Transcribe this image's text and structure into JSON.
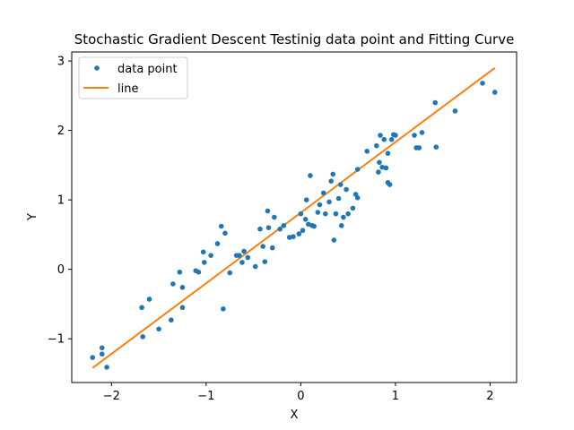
{
  "chart_data": {
    "type": "scatter",
    "title": "Stochastic Gradient Descent Testinig data point and Fitting Curve",
    "xlabel": "X",
    "ylabel": "Y",
    "xlim": [
      -2.42,
      2.28
    ],
    "ylim": [
      -1.63,
      3.13
    ],
    "x_ticks": [
      -2,
      -1,
      0,
      1,
      2
    ],
    "x_tick_labels": [
      "−2",
      "−1",
      "0",
      "1",
      "2"
    ],
    "y_ticks": [
      -1,
      0,
      1,
      2,
      3
    ],
    "y_tick_labels": [
      "−1",
      "0",
      "1",
      "2",
      "3"
    ],
    "grid": false,
    "legend_position": "upper-left",
    "colors": {
      "points": "#1f77b4",
      "line": "#ff7f0e",
      "axes": "#000000",
      "legend_border": "#cccccc"
    },
    "series": [
      {
        "name": "data point",
        "kind": "scatter",
        "points": [
          [
            -2.2,
            -1.27
          ],
          [
            -2.1,
            -1.13
          ],
          [
            -2.1,
            -1.22
          ],
          [
            -2.05,
            -1.41
          ],
          [
            -1.68,
            -0.55
          ],
          [
            -1.67,
            -0.97
          ],
          [
            -1.6,
            -0.43
          ],
          [
            -1.5,
            -0.86
          ],
          [
            -1.37,
            -0.73
          ],
          [
            -1.35,
            -0.21
          ],
          [
            -1.28,
            -0.04
          ],
          [
            -1.25,
            -0.55
          ],
          [
            -1.25,
            -0.26
          ],
          [
            -1.11,
            -0.02
          ],
          [
            -1.08,
            -0.04
          ],
          [
            -1.03,
            0.25
          ],
          [
            -1.02,
            0.1
          ],
          [
            -0.95,
            0.2
          ],
          [
            -0.88,
            0.37
          ],
          [
            -0.84,
            0.62
          ],
          [
            -0.82,
            -0.57
          ],
          [
            -0.8,
            0.52
          ],
          [
            -0.75,
            -0.05
          ],
          [
            -0.68,
            0.2
          ],
          [
            -0.65,
            0.2
          ],
          [
            -0.62,
            0.1
          ],
          [
            -0.6,
            0.26
          ],
          [
            -0.56,
            0.17
          ],
          [
            -0.48,
            0.04
          ],
          [
            -0.43,
            0.58
          ],
          [
            -0.4,
            0.33
          ],
          [
            -0.38,
            0.11
          ],
          [
            -0.35,
            0.84
          ],
          [
            -0.34,
            0.6
          ],
          [
            -0.3,
            0.31
          ],
          [
            -0.28,
            0.75
          ],
          [
            -0.22,
            0.58
          ],
          [
            -0.18,
            0.63
          ],
          [
            -0.12,
            0.46
          ],
          [
            -0.08,
            0.47
          ],
          [
            -0.02,
            0.51
          ],
          [
            0.0,
            0.8
          ],
          [
            0.02,
            0.56
          ],
          [
            0.05,
            0.72
          ],
          [
            0.06,
            1.0
          ],
          [
            0.08,
            0.65
          ],
          [
            0.1,
            1.35
          ],
          [
            0.12,
            0.63
          ],
          [
            0.14,
            0.62
          ],
          [
            0.18,
            0.82
          ],
          [
            0.2,
            0.93
          ],
          [
            0.24,
            1.1
          ],
          [
            0.26,
            0.8
          ],
          [
            0.3,
            0.97
          ],
          [
            0.32,
            1.27
          ],
          [
            0.34,
            1.37
          ],
          [
            0.35,
            0.42
          ],
          [
            0.37,
            0.8
          ],
          [
            0.4,
            1.02
          ],
          [
            0.42,
            1.22
          ],
          [
            0.43,
            0.63
          ],
          [
            0.45,
            0.75
          ],
          [
            0.48,
            1.15
          ],
          [
            0.5,
            0.8
          ],
          [
            0.55,
            0.88
          ],
          [
            0.58,
            1.08
          ],
          [
            0.6,
            1.03
          ],
          [
            0.6,
            1.44
          ],
          [
            0.7,
            1.7
          ],
          [
            0.8,
            1.78
          ],
          [
            0.82,
            1.4
          ],
          [
            0.83,
            1.54
          ],
          [
            0.84,
            1.93
          ],
          [
            0.86,
            1.47
          ],
          [
            0.88,
            1.87
          ],
          [
            0.9,
            1.46
          ],
          [
            0.92,
            1.67
          ],
          [
            0.92,
            1.25
          ],
          [
            0.94,
            1.22
          ],
          [
            0.96,
            1.87
          ],
          [
            0.98,
            1.94
          ],
          [
            1.0,
            1.93
          ],
          [
            1.2,
            1.93
          ],
          [
            1.22,
            1.75
          ],
          [
            1.25,
            1.75
          ],
          [
            1.28,
            1.97
          ],
          [
            1.42,
            2.4
          ],
          [
            1.43,
            1.76
          ],
          [
            1.63,
            2.28
          ],
          [
            1.92,
            2.68
          ],
          [
            2.05,
            2.55
          ]
        ]
      },
      {
        "name": "line",
        "kind": "line",
        "points": [
          [
            -2.2,
            -1.42
          ],
          [
            2.05,
            2.9
          ]
        ]
      }
    ]
  }
}
